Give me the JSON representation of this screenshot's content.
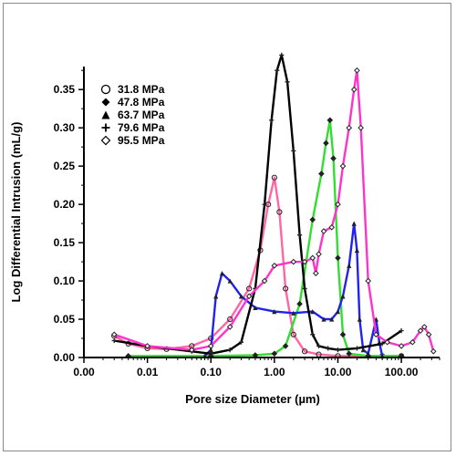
{
  "chart_data": {
    "type": "line",
    "xlabel": "Pore size Diameter (µm)",
    "ylabel": "Log Differential Intrusion (mL/g)",
    "x_scale": "log",
    "xlim": [
      0.001,
      400
    ],
    "ylim": [
      0,
      0.38
    ],
    "x_ticks": [
      {
        "value": 0.001,
        "label": "0.00"
      },
      {
        "value": 0.01,
        "label": "0.01"
      },
      {
        "value": 0.1,
        "label": "0.10"
      },
      {
        "value": 1,
        "label": "1.00"
      },
      {
        "value": 10,
        "label": "10.00"
      },
      {
        "value": 100,
        "label": "100.00"
      }
    ],
    "y_ticks": [
      {
        "value": 0,
        "label": "0.00"
      },
      {
        "value": 0.05,
        "label": "0.05"
      },
      {
        "value": 0.1,
        "label": "0.10"
      },
      {
        "value": 0.15,
        "label": "0.15"
      },
      {
        "value": 0.2,
        "label": "0.20"
      },
      {
        "value": 0.25,
        "label": "0.25"
      },
      {
        "value": 0.3,
        "label": "0.30"
      },
      {
        "value": 0.35,
        "label": "0.35"
      }
    ],
    "legend_position": "top-left",
    "series": [
      {
        "name": "31.8 MPa",
        "marker": "circle",
        "color": "#ff66a3",
        "points": [
          [
            0.003,
            0.028
          ],
          [
            0.005,
            0.018
          ],
          [
            0.01,
            0.012
          ],
          [
            0.02,
            0.011
          ],
          [
            0.05,
            0.015
          ],
          [
            0.1,
            0.025
          ],
          [
            0.2,
            0.05
          ],
          [
            0.4,
            0.09
          ],
          [
            0.6,
            0.14
          ],
          [
            0.8,
            0.2
          ],
          [
            1.0,
            0.235
          ],
          [
            1.2,
            0.19
          ],
          [
            1.5,
            0.09
          ],
          [
            2.0,
            0.03
          ],
          [
            3.0,
            0.008
          ],
          [
            5.0,
            0.004
          ],
          [
            10.0,
            0.002
          ],
          [
            50.0,
            0.002
          ],
          [
            100.0,
            0.002
          ]
        ]
      },
      {
        "name": "47.8 MPa",
        "marker": "diamond-filled",
        "color": "#33dd33",
        "points": [
          [
            0.005,
            0.002
          ],
          [
            0.1,
            0.002
          ],
          [
            0.5,
            0.003
          ],
          [
            1.0,
            0.005
          ],
          [
            1.5,
            0.015
          ],
          [
            2.5,
            0.07
          ],
          [
            4.0,
            0.18
          ],
          [
            5.5,
            0.24
          ],
          [
            6.5,
            0.28
          ],
          [
            7.5,
            0.31
          ],
          [
            8.5,
            0.26
          ],
          [
            10.0,
            0.13
          ],
          [
            12.0,
            0.03
          ],
          [
            15.0,
            0.005
          ],
          [
            30.0,
            0.002
          ],
          [
            100.0,
            0.002
          ]
        ]
      },
      {
        "name": "63.7 MPa",
        "marker": "triangle-filled",
        "color": "#2222ee",
        "points": [
          [
            0.08,
            0.002
          ],
          [
            0.1,
            0.01
          ],
          [
            0.12,
            0.08
          ],
          [
            0.15,
            0.11
          ],
          [
            0.2,
            0.1
          ],
          [
            0.3,
            0.08
          ],
          [
            0.5,
            0.065
          ],
          [
            1.0,
            0.06
          ],
          [
            2.0,
            0.058
          ],
          [
            4.0,
            0.06
          ],
          [
            6.0,
            0.05
          ],
          [
            8.0,
            0.05
          ],
          [
            10.0,
            0.06
          ],
          [
            12.0,
            0.08
          ],
          [
            15.0,
            0.12
          ],
          [
            18.0,
            0.175
          ],
          [
            20.0,
            0.14
          ],
          [
            22.0,
            0.05
          ],
          [
            25.0,
            0.01
          ],
          [
            30.0,
            0.005
          ],
          [
            40.0,
            0.05
          ],
          [
            45.0,
            0.02
          ],
          [
            50.0,
            0.002
          ]
        ]
      },
      {
        "name": "79.6 MPa",
        "marker": "plus",
        "color": "#000000",
        "points": [
          [
            0.003,
            0.022
          ],
          [
            0.01,
            0.015
          ],
          [
            0.05,
            0.008
          ],
          [
            0.1,
            0.005
          ],
          [
            0.2,
            0.01
          ],
          [
            0.3,
            0.02
          ],
          [
            0.5,
            0.09
          ],
          [
            0.7,
            0.2
          ],
          [
            0.9,
            0.31
          ],
          [
            1.1,
            0.375
          ],
          [
            1.3,
            0.395
          ],
          [
            1.6,
            0.36
          ],
          [
            2.0,
            0.27
          ],
          [
            2.5,
            0.16
          ],
          [
            3.0,
            0.09
          ],
          [
            4.0,
            0.03
          ],
          [
            5.0,
            0.015
          ],
          [
            7.0,
            0.012
          ],
          [
            10.0,
            0.01
          ],
          [
            20.0,
            0.012
          ],
          [
            50.0,
            0.018
          ],
          [
            100.0,
            0.035
          ]
        ]
      },
      {
        "name": "95.5 MPa",
        "marker": "diamond-open",
        "color": "#ff33cc",
        "points": [
          [
            0.003,
            0.03
          ],
          [
            0.01,
            0.015
          ],
          [
            0.05,
            0.01
          ],
          [
            0.1,
            0.015
          ],
          [
            0.2,
            0.04
          ],
          [
            0.4,
            0.08
          ],
          [
            0.7,
            0.1
          ],
          [
            1.0,
            0.12
          ],
          [
            2.0,
            0.125
          ],
          [
            3.0,
            0.125
          ],
          [
            4.0,
            0.13
          ],
          [
            4.5,
            0.11
          ],
          [
            5.0,
            0.135
          ],
          [
            6.0,
            0.165
          ],
          [
            8.0,
            0.17
          ],
          [
            10.0,
            0.2
          ],
          [
            12.0,
            0.25
          ],
          [
            15.0,
            0.3
          ],
          [
            18.0,
            0.35
          ],
          [
            20.0,
            0.375
          ],
          [
            23.0,
            0.3
          ],
          [
            30.0,
            0.1
          ],
          [
            40.0,
            0.03
          ],
          [
            60.0,
            0.02
          ],
          [
            100.0,
            0.015
          ],
          [
            150.0,
            0.02
          ],
          [
            200.0,
            0.035
          ],
          [
            230.0,
            0.04
          ],
          [
            270.0,
            0.03
          ],
          [
            320.0,
            0.008
          ]
        ]
      }
    ]
  }
}
